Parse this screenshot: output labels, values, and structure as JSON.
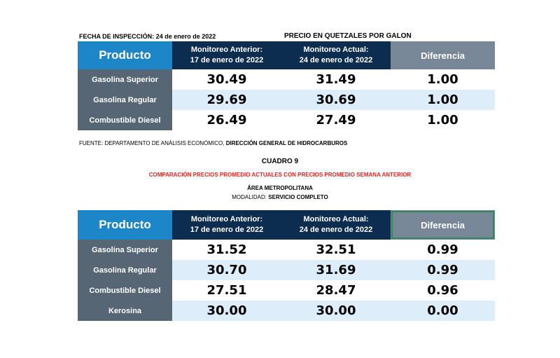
{
  "header": {
    "fecha_label": "FECHA DE INSPECCIÓN:",
    "fecha_value": "24 de enero de  2022",
    "precio_title": "PRECIO EN QUETZALES POR GALON"
  },
  "table1": {
    "columns": {
      "producto": "Producto",
      "anterior_line1": "Monitoreo Anterior:",
      "anterior_line2": "17  de enero  de 2022",
      "actual_line1": "Monitoreo Actual:",
      "actual_line2": "24 de enero de 2022",
      "diferencia": "Diferencia"
    },
    "rows": [
      {
        "producto": "Gasolina Superior",
        "anterior": "30.49",
        "actual": "31.49",
        "diferencia": "1.00"
      },
      {
        "producto": "Gasolina Regular",
        "anterior": "29.69",
        "actual": "30.69",
        "diferencia": "1.00"
      },
      {
        "producto": "Combustible Diesel",
        "anterior": "26.49",
        "actual": "27.49",
        "diferencia": "1.00"
      }
    ]
  },
  "source": {
    "prefix": "FUENTE: DEPARTAMENTO DE ANÁLISIS ECONÓMICO,",
    "emphasis": "DIRECCIÓN GENERAL DE HIDROCARBUROS"
  },
  "section2": {
    "cuadro": "CUADRO  9",
    "comparacion": "COMPARACIÓN PRECIOS PROMEDIO ACTUALES CON PRECIOS PROMEDIO SEMANA ANTERIOR",
    "area": "ÁREA METROPOLITANA",
    "modalidad_label": "MODALIDAD:",
    "modalidad_value": "SERVICIO COMPLETO"
  },
  "table2": {
    "columns": {
      "producto": "Producto",
      "anterior_line1": "Monitoreo Anterior:",
      "anterior_line2": "17  de enero  de 2022",
      "actual_line1": "Monitoreo Actual:",
      "actual_line2": "24 de enero de 2022",
      "diferencia": "Diferencia"
    },
    "rows": [
      {
        "producto": "Gasolina Superior",
        "anterior": "31.52",
        "actual": "32.51",
        "diferencia": "0.99"
      },
      {
        "producto": "Gasolina Regular",
        "anterior": "30.70",
        "actual": "31.69",
        "diferencia": "0.99"
      },
      {
        "producto": "Combustible Diesel",
        "anterior": "27.51",
        "actual": "28.47",
        "diferencia": "0.96"
      },
      {
        "producto": "Kerosina",
        "anterior": "30.00",
        "actual": "30.00",
        "diferencia": "0.00"
      }
    ]
  },
  "colors": {
    "header_blue": "#1b86c8",
    "header_navy": "#0c2d4f",
    "header_gray": "#778797",
    "row_label": "#566674",
    "row_alt": "#ddeefa",
    "subtitle_red": "#e8231f"
  }
}
